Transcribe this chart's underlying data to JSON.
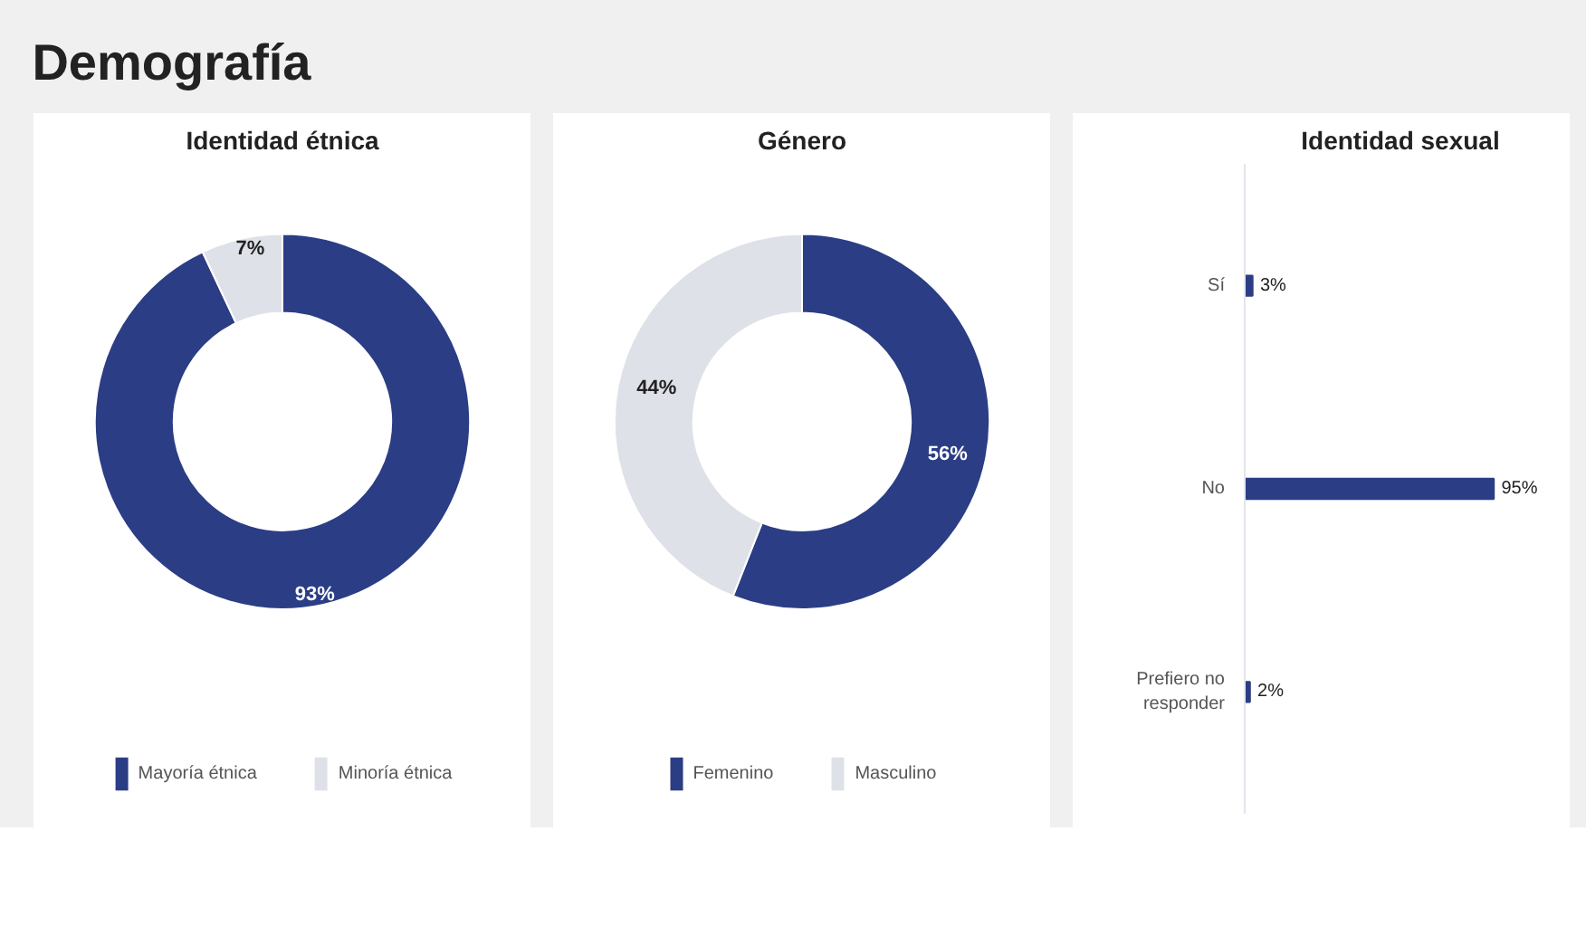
{
  "chart_data": [
    {
      "type": "other",
      "title": "Demografía"
    },
    {
      "type": "donut",
      "title": "Identidad étnica",
      "categories": [
        "Mayoría étnica",
        "Minoría étnica"
      ],
      "values": [
        93,
        7
      ],
      "value_labels": [
        "93%",
        "7%"
      ],
      "colors": [
        "#2b3d84",
        "#dfe1e8"
      ],
      "legend": "bottom"
    },
    {
      "type": "donut",
      "title": "Género",
      "categories": [
        "Femenino",
        "Masculino"
      ],
      "values": [
        56,
        44
      ],
      "value_labels": [
        "56%",
        "44%"
      ],
      "colors": [
        "#2b3d84",
        "#dfe1e8"
      ],
      "legend": "bottom"
    },
    {
      "type": "bar",
      "orientation": "horizontal",
      "title": "Identidad sexual",
      "categories": [
        "Sí",
        "No",
        "Prefiero no responder"
      ],
      "values": [
        3,
        95,
        2
      ],
      "value_labels": [
        "3%",
        "95%",
        "2%"
      ],
      "color": "#2b3d84"
    }
  ]
}
